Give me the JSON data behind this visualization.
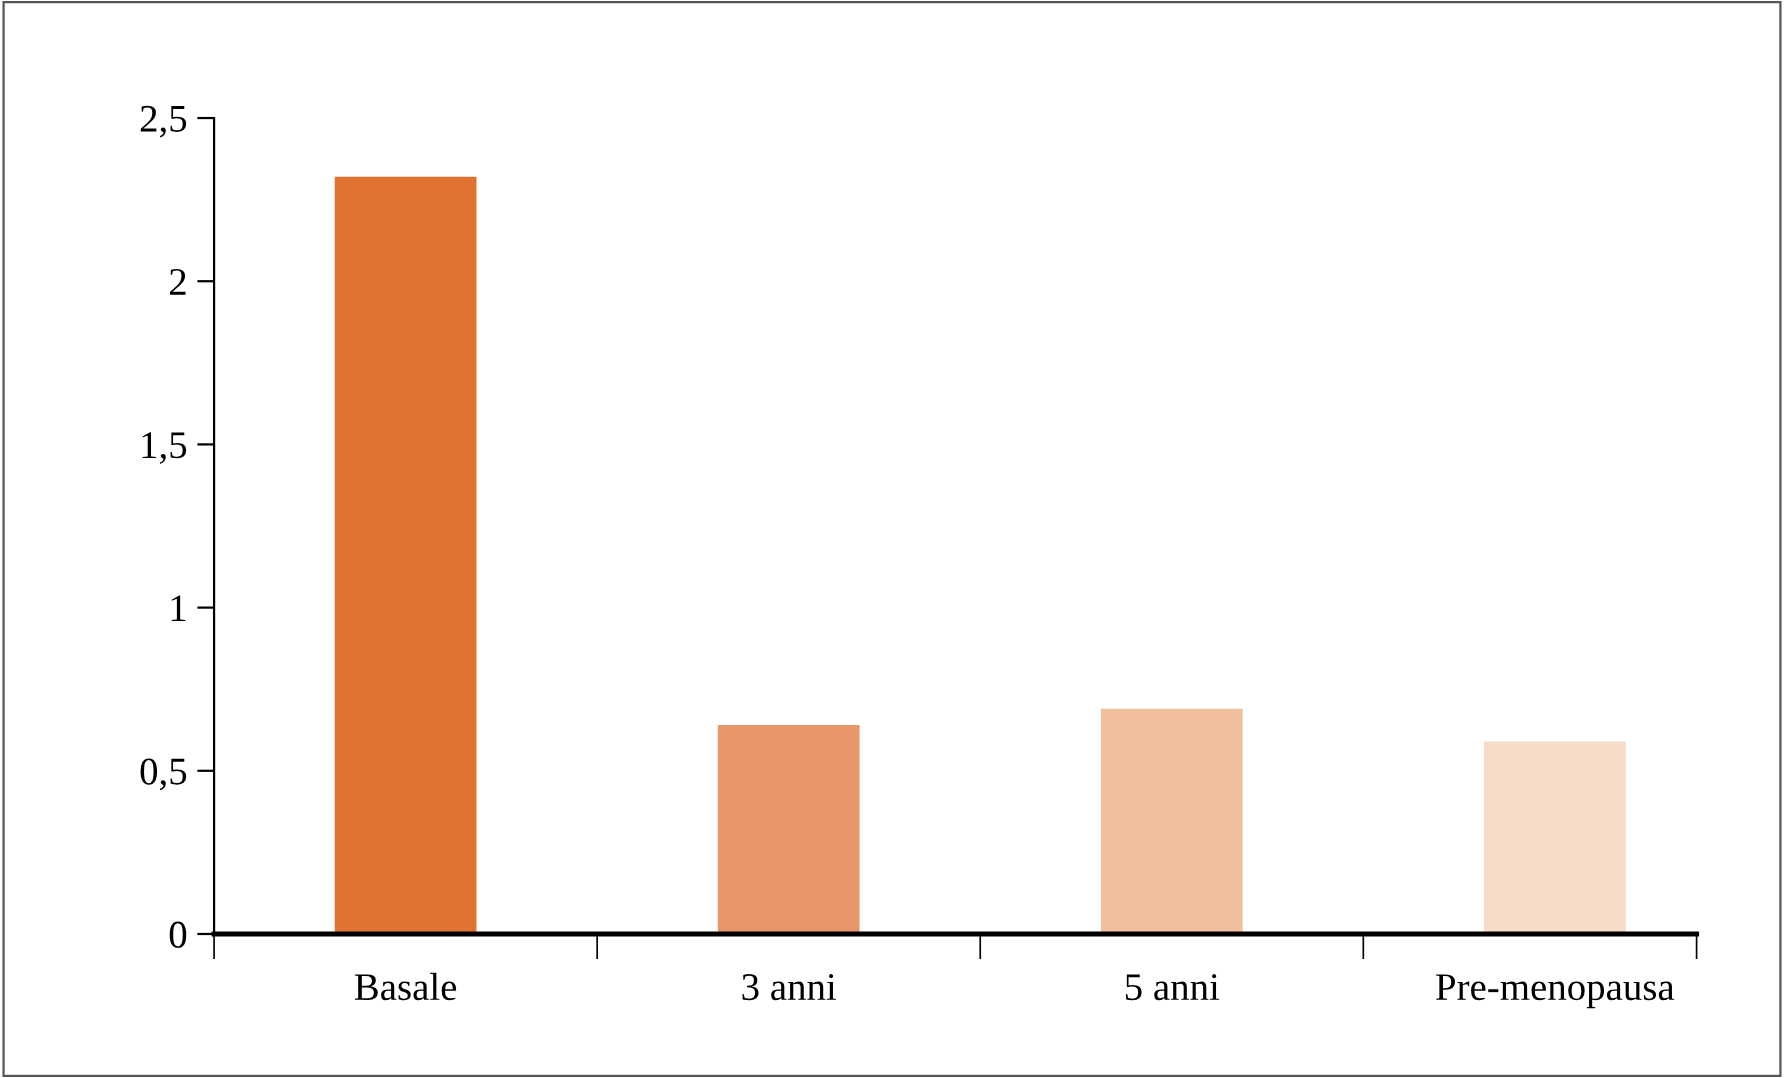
{
  "chart_data": {
    "type": "bar",
    "categories": [
      "Basale",
      "3 anni",
      "5 anni",
      "Pre-menopausa"
    ],
    "values": [
      2.32,
      0.64,
      0.69,
      0.59
    ],
    "colors": [
      "#e07332",
      "#e9976a",
      "#f0bf9c",
      "#f6dcc9"
    ],
    "ylim": [
      0,
      2.5
    ],
    "yticks": [
      0,
      {
        "value": 0.5,
        "label": "0,5"
      },
      1,
      {
        "value": 1.5,
        "label": "1,5"
      },
      2,
      {
        "value": 2.5,
        "label": "2,5"
      }
    ],
    "grid": false,
    "legend": false
  }
}
